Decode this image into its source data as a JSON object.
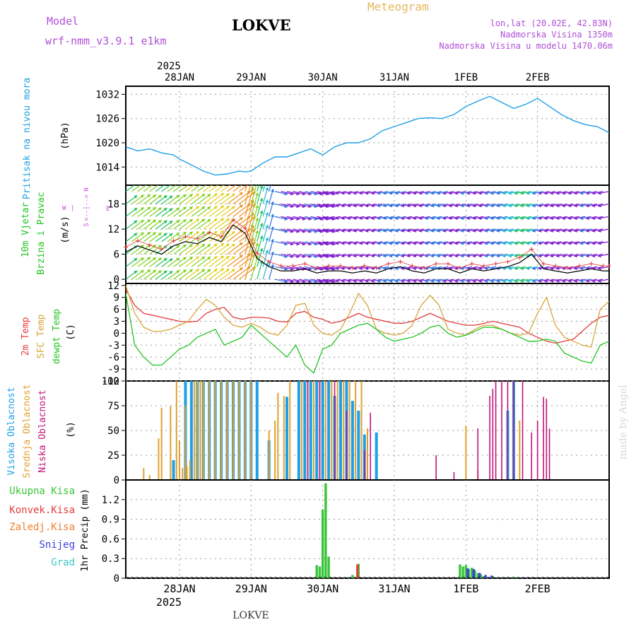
{
  "header": {
    "model_label": "Model",
    "model_name": "wrf-nmm_v3.9.1 e1km",
    "station": "LOKVE",
    "meteogram": "Meteogram",
    "coords": "lon,lat (20.02E, 42.83N)",
    "altitude": "Nadmorska Visina 1350m",
    "model_altitude": "Nadmorska Visina u modelu 1470.06m",
    "footer_station": "LOKVE",
    "watermark": "made by Angel"
  },
  "time_axis": {
    "top_year": "2025",
    "bottom_year": "2025",
    "day_labels": [
      "28JAN",
      "29JAN",
      "30JAN",
      "31JAN",
      "1FEB",
      "2FEB"
    ],
    "range_hours": [
      -18,
      144
    ]
  },
  "colors": {
    "pressure": "#1ea0e6",
    "temp2m": "#e23c3c",
    "sfc": "#d9a43a",
    "dewpt": "#22c422",
    "high_cloud": "#1ea0e6",
    "mid_cloud": "#e0a030",
    "low_cloud": "#c0147d",
    "precip_total": "#39c539",
    "precip_conv": "#e23c3c",
    "precip_frozen": "#f08030",
    "precip_snow": "#4040e0",
    "precip_graupel": "#3cc8c8",
    "wind_label_colour": "#c84ed8"
  },
  "panels": {
    "pressure": {
      "label": "Pritisak na nivou mora",
      "unit": "(hPa)",
      "ticks": [
        "1032",
        "1026",
        "1020",
        "1014"
      ]
    },
    "wind": {
      "label1": "10m Vjetar",
      "label2": "Brzina i Pravac",
      "unit": "(m/s)",
      "ticks": [
        "18",
        "12",
        "6",
        "0"
      ],
      "compass_n": "N",
      "compass_w": "W",
      "compass_e": "E",
      "compass_s": "S",
      "compass_mid": "<--|-->",
      "compass_bar": "|"
    },
    "temp": {
      "label1": "2m Temp",
      "label2": "SFC Temp",
      "label3": "dewpt Temp",
      "unit": "(C)",
      "ticks": [
        "12",
        "9",
        "6",
        "3",
        "0",
        "-3",
        "-6",
        "-9",
        "-12"
      ]
    },
    "cloud": {
      "label1": "Visoka Oblacnost",
      "label2": "Srednja Oblacnost",
      "label3": "Niska Oblacnost",
      "unit": "(%)",
      "ticks": [
        "100",
        "75",
        "50",
        "25",
        "0"
      ]
    },
    "precip": {
      "label": "1hr Precip (mm)",
      "ticks": [
        "1.2",
        "0.9",
        "0.6",
        "0.3",
        "0"
      ],
      "legend": [
        "Ukupna Kisa",
        "Konvek.Kisa",
        "Zaledj.Kisa",
        "Snijeg",
        "Grad"
      ]
    }
  },
  "chart_data": [
    {
      "type": "line",
      "title": "Pritisak na nivou mora",
      "ylabel": "hPa",
      "ylim": [
        1009.5,
        1034
      ],
      "x": [
        -18,
        -14,
        -10,
        -6,
        -2,
        0,
        4,
        8,
        12,
        16,
        20,
        22,
        24,
        28,
        32,
        36,
        40,
        44,
        48,
        52,
        56,
        60,
        64,
        68,
        72,
        76,
        80,
        84,
        88,
        92,
        96,
        100,
        104,
        108,
        112,
        116,
        120,
        124,
        128,
        132,
        136,
        140,
        144
      ],
      "series": [
        {
          "values": [
            1019,
            1018,
            1018.5,
            1017.5,
            1017,
            1016,
            1014.5,
            1013,
            1012,
            1012.3,
            1013,
            1012.8,
            1013,
            1015,
            1016.5,
            1016.5,
            1017.5,
            1018.5,
            1017,
            1019,
            1020,
            1020,
            1021,
            1023,
            1024,
            1025,
            1026,
            1026.2,
            1026,
            1027,
            1029,
            1030.3,
            1031.5,
            1030,
            1028.5,
            1029.5,
            1031,
            1029,
            1027,
            1025.5,
            1024.5,
            1024,
            1022.5
          ]
        }
      ]
    },
    {
      "type": "line",
      "title": "10m Vjetar Brzina i Pravac",
      "ylabel": "m/s",
      "ylim": [
        -1,
        22.5
      ],
      "x": [
        -18,
        -14,
        -10,
        -6,
        -2,
        2,
        6,
        10,
        14,
        18,
        22,
        26,
        30,
        34,
        38,
        42,
        46,
        50,
        54,
        58,
        62,
        66,
        70,
        74,
        78,
        82,
        86,
        90,
        94,
        98,
        102,
        106,
        110,
        114,
        118,
        122,
        126,
        130,
        134,
        138,
        142,
        144
      ],
      "series": [
        {
          "values": [
            6.5,
            8,
            7,
            6,
            8,
            9,
            8.5,
            10,
            9,
            13,
            11,
            5,
            3,
            2,
            2,
            2.5,
            1.5,
            2,
            2,
            1.5,
            2,
            1.5,
            2.5,
            3,
            2,
            1.5,
            2.5,
            2.5,
            1.5,
            2.5,
            2,
            2.5,
            3,
            4,
            6,
            2.5,
            2,
            1.5,
            2,
            2.5,
            2,
            2
          ]
        }
      ]
    },
    {
      "type": "line",
      "title": "Temperature",
      "ylabel": "C",
      "ylim": [
        -12,
        12.5
      ],
      "x": [
        -18,
        -15,
        -12,
        -9,
        -6,
        -3,
        0,
        3,
        6,
        9,
        12,
        15,
        18,
        21,
        24,
        27,
        30,
        33,
        36,
        39,
        42,
        45,
        48,
        51,
        54,
        57,
        60,
        63,
        66,
        69,
        72,
        75,
        78,
        81,
        84,
        87,
        90,
        93,
        96,
        99,
        102,
        105,
        108,
        111,
        114,
        117,
        120,
        123,
        126,
        129,
        132,
        135,
        138,
        141,
        144
      ],
      "series": [
        {
          "name": "2m Temp",
          "values": [
            11,
            7,
            5,
            4.5,
            4,
            3.5,
            3,
            2.8,
            3,
            5,
            6,
            6.5,
            4,
            3.5,
            4,
            4,
            3.8,
            3,
            2.8,
            5,
            5.5,
            4,
            3.5,
            2.5,
            3,
            4,
            5,
            4,
            3.5,
            3,
            2.5,
            2.5,
            3,
            4,
            5,
            4,
            3,
            2.5,
            2,
            2,
            2.5,
            3,
            2.5,
            2,
            1.5,
            0,
            -1,
            -2,
            -2.5,
            -2,
            -1.5,
            0.5,
            2.5,
            4,
            4.5
          ]
        },
        {
          "name": "SFC Temp",
          "values": [
            12,
            5,
            1.5,
            0.5,
            0.5,
            1,
            2,
            3,
            6,
            8.5,
            7,
            4,
            2,
            1.5,
            2.5,
            1.5,
            0,
            -0.5,
            2,
            7,
            7.5,
            2,
            0,
            -0.5,
            1,
            5,
            10,
            7,
            1,
            0,
            -0.5,
            0,
            2,
            7,
            9.5,
            7,
            1,
            0,
            -0.5,
            1,
            2,
            2,
            1,
            0,
            -0.5,
            0,
            5,
            9,
            2,
            -1,
            -2,
            -3,
            -3.5,
            6,
            8
          ]
        },
        {
          "name": "dewpt Temp",
          "values": [
            10,
            -3,
            -6,
            -8,
            -8,
            -6,
            -4,
            -3,
            -1,
            0,
            1,
            -3,
            -2,
            -1,
            2,
            0,
            -2,
            -4,
            -6,
            -3,
            -8,
            -10,
            -4,
            -3,
            0,
            1,
            2,
            2.5,
            1,
            -1,
            -2,
            -1.5,
            -1,
            0,
            1.5,
            2,
            0,
            -1,
            -0.5,
            0.5,
            1.5,
            1.5,
            1,
            0,
            -1,
            -2,
            -2,
            -1.5,
            -2,
            -5,
            -6,
            -7,
            -7.5,
            -3,
            -2
          ]
        }
      ]
    },
    {
      "type": "bar",
      "title": "Oblacnost",
      "ylabel": "%",
      "ylim": [
        0,
        100
      ],
      "series": [
        {
          "name": "Visoka Oblacnost",
          "values": [
            [
              -2,
              20
            ],
            [
              2,
              100
            ],
            [
              4,
              100
            ],
            [
              6,
              100
            ],
            [
              8,
              100
            ],
            [
              10,
              100
            ],
            [
              12,
              100
            ],
            [
              14,
              100
            ],
            [
              16,
              100
            ],
            [
              18,
              100
            ],
            [
              20,
              100
            ],
            [
              22,
              100
            ],
            [
              24,
              100
            ],
            [
              26,
              100
            ],
            [
              30,
              40
            ],
            [
              36,
              84
            ],
            [
              40,
              100
            ],
            [
              42,
              100
            ],
            [
              44,
              100
            ],
            [
              46,
              100
            ],
            [
              48,
              100
            ],
            [
              50,
              100
            ],
            [
              52,
              85
            ],
            [
              54,
              100
            ],
            [
              56,
              100
            ],
            [
              58,
              80
            ],
            [
              60,
              70
            ],
            [
              62,
              46
            ],
            [
              66,
              48
            ],
            [
              110,
              70
            ],
            [
              112,
              100
            ]
          ]
        },
        {
          "name": "Srednja Oblacnost",
          "values": [
            [
              -12,
              12
            ],
            [
              -10,
              5
            ],
            [
              -7,
              42
            ],
            [
              -6,
              73
            ],
            [
              -3,
              75
            ],
            [
              -1,
              100
            ],
            [
              0,
              40
            ],
            [
              1,
              12
            ],
            [
              2,
              75
            ],
            [
              2.5,
              14
            ],
            [
              3.5,
              20
            ],
            [
              5,
              100
            ],
            [
              6,
              100
            ],
            [
              7,
              100
            ],
            [
              8,
              100
            ],
            [
              10,
              100
            ],
            [
              12,
              100
            ],
            [
              14,
              100
            ],
            [
              16,
              100
            ],
            [
              18,
              100
            ],
            [
              20,
              100
            ],
            [
              22,
              100
            ],
            [
              24,
              100
            ],
            [
              30,
              50
            ],
            [
              32,
              60
            ],
            [
              33,
              88
            ],
            [
              35,
              85
            ],
            [
              37,
              100
            ],
            [
              41,
              100
            ],
            [
              43,
              100
            ],
            [
              45,
              100
            ],
            [
              47,
              100
            ],
            [
              49,
              100
            ],
            [
              51,
              100
            ],
            [
              53,
              100
            ],
            [
              55,
              100
            ],
            [
              57,
              100
            ],
            [
              59,
              100
            ],
            [
              61,
              100
            ],
            [
              63,
              52
            ],
            [
              96,
              55
            ],
            [
              100,
              10
            ],
            [
              114,
              60
            ]
          ]
        },
        {
          "name": "Niska Oblacnost",
          "values": [
            [
              43,
              100
            ],
            [
              47,
              100
            ],
            [
              52,
              100
            ],
            [
              56,
              70
            ],
            [
              62,
              30
            ],
            [
              64,
              68
            ],
            [
              86,
              25
            ],
            [
              92,
              8
            ],
            [
              100,
              52
            ],
            [
              104,
              85
            ],
            [
              105,
              92
            ],
            [
              106,
              100
            ],
            [
              108,
              100
            ],
            [
              110,
              100
            ],
            [
              112,
              100
            ],
            [
              115,
              100
            ],
            [
              118,
              48
            ],
            [
              120,
              60
            ],
            [
              122,
              84
            ],
            [
              123,
              82
            ],
            [
              124,
              52
            ]
          ]
        }
      ]
    },
    {
      "type": "bar",
      "title": "1hr Precip",
      "ylabel": "mm",
      "ylim": [
        0,
        1.5
      ],
      "series": [
        {
          "name": "Ukupna Kisa",
          "values": [
            [
              46,
              0.2
            ],
            [
              47,
              0.18
            ],
            [
              48,
              1.05
            ],
            [
              49,
              1.45
            ],
            [
              50,
              0.33
            ],
            [
              58,
              0.05
            ],
            [
              60,
              0.22
            ],
            [
              94,
              0.21
            ],
            [
              95,
              0.18
            ],
            [
              96,
              0.2
            ],
            [
              97,
              0.14
            ],
            [
              98,
              0.16
            ],
            [
              99,
              0.12
            ],
            [
              100,
              0.08
            ],
            [
              101,
              0.06
            ],
            [
              102,
              0.03
            ],
            [
              105,
              0.03
            ],
            [
              110,
              0.02
            ],
            [
              112,
              0.02
            ]
          ]
        },
        {
          "name": "Konvek.Kisa",
          "values": [
            [
              60,
              0.21
            ]
          ]
        },
        {
          "name": "Snijeg",
          "values": [
            [
              96,
              0.15
            ],
            [
              98,
              0.14
            ],
            [
              100,
              0.08
            ],
            [
              102,
              0.05
            ],
            [
              104,
              0.04
            ]
          ]
        }
      ]
    }
  ]
}
